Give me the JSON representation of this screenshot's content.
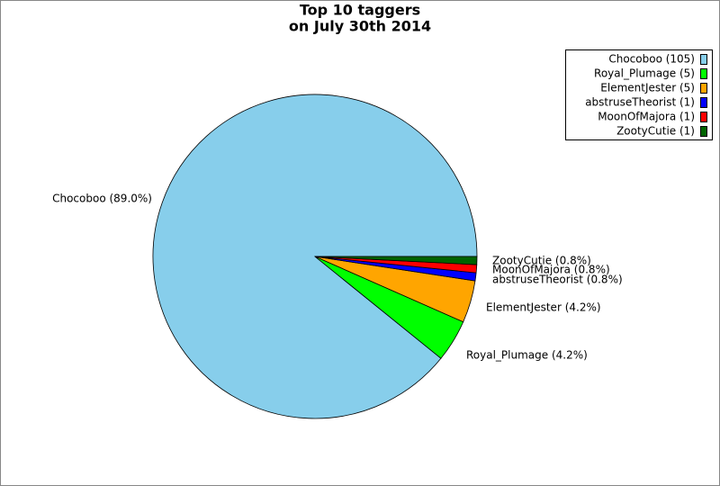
{
  "chart_data": {
    "type": "pie",
    "title": "Top 10 taggers",
    "subtitle": "on July 30th 2014",
    "categories": [
      "Chocoboo",
      "Royal_Plumage",
      "ElementJester",
      "abstruseTheorist",
      "MoonOfMajora",
      "ZootyCutie"
    ],
    "values": [
      89.0,
      4.2,
      4.2,
      0.8,
      0.8,
      0.8
    ],
    "value_labels": [
      "Chocoboo (89.0%)",
      "Royal_Plumage (4.2%)",
      "ElementJester (4.2%)",
      "abstruseTheorist (0.8%)",
      "MoonOfMajora (0.8%)",
      "ZootyCutie (0.8%)"
    ],
    "counts": [
      105,
      5,
      5,
      1,
      1,
      1
    ],
    "count_labels": [
      "Chocoboo (105)",
      "Royal_Plumage (5)",
      "ElementJester (5)",
      "abstruseTheorist (1)",
      "MoonOfMajora (1)",
      "ZootyCutie (1)"
    ],
    "colors": [
      "#87ceeb",
      "#00ff00",
      "#ffa500",
      "#0000ff",
      "#ff0000",
      "#006400"
    ],
    "legend": "upper right"
  }
}
